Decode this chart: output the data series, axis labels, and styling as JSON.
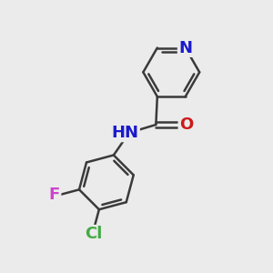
{
  "bg_color": "#ebebeb",
  "bond_color": "#3a3a3a",
  "bond_width": 1.8,
  "atom_colors": {
    "N_pyridine": "#1a1acc",
    "N_amide": "#1a1acc",
    "O": "#cc1a1a",
    "F": "#cc44cc",
    "Cl": "#44aa44",
    "C": "#3a3a3a"
  },
  "font_size_atoms": 13
}
